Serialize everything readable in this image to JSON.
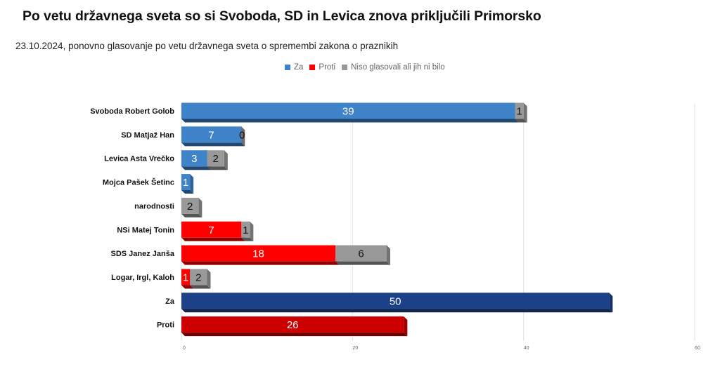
{
  "title": "Po vetu državnega sveta so si Svoboda, SD in Levica znova priključili Primorsko",
  "subtitle": "23.10.2024, ponovno glasovanje po vetu državnega sveta o spremembi zakona o praznikih",
  "chart_data": {
    "type": "bar",
    "orientation": "horizontal",
    "stacked": true,
    "three_d": true,
    "categories": [
      "Svoboda Robert Golob",
      "SD Matjaž Han",
      "Levica Asta Vrečko",
      "Mojca Pašek Šetinc",
      "narodnosti",
      "NSi Matej Tonin",
      "SDS Janez Janša",
      "Logar, Irgl, Kaloh",
      "Za",
      "Proti"
    ],
    "series": [
      {
        "name": "Za",
        "color": "#3f83c9",
        "values": [
          39,
          7,
          3,
          1,
          0,
          0,
          0,
          0,
          0,
          0
        ]
      },
      {
        "name": "Proti",
        "color": "#ff0000",
        "values": [
          0,
          0,
          0,
          0,
          0,
          7,
          18,
          1,
          0,
          0
        ]
      },
      {
        "name": "Niso glasovali ali jih ni bilo",
        "color": "#999999",
        "values": [
          1,
          0,
          2,
          0,
          2,
          1,
          6,
          2,
          0,
          0
        ]
      }
    ],
    "totals": [
      {
        "category": "Za",
        "value": 50,
        "color": "#1c4189"
      },
      {
        "category": "Proti",
        "value": 26,
        "color": "#cc0000"
      }
    ],
    "data_labels": [
      [
        {
          "series": "Za",
          "value": "39"
        },
        {
          "series": "Niso glasovali ali jih ni bilo",
          "value": "1"
        }
      ],
      [
        {
          "series": "Za",
          "value": "7"
        },
        {
          "series": "Niso glasovali ali jih ni bilo",
          "value": "0"
        }
      ],
      [
        {
          "series": "Za",
          "value": "3"
        },
        {
          "series": "Niso glasovali ali jih ni bilo",
          "value": "2"
        }
      ],
      [
        {
          "series": "Za",
          "value": "1"
        }
      ],
      [
        {
          "series": "Niso glasovali ali jih ni bilo",
          "value": "2"
        }
      ],
      [
        {
          "series": "Proti",
          "value": "7"
        },
        {
          "series": "Niso glasovali ali jih ni bilo",
          "value": "1"
        }
      ],
      [
        {
          "series": "Proti",
          "value": "18"
        },
        {
          "series": "Niso glasovali ali jih ni bilo",
          "value": "6"
        }
      ],
      [
        {
          "series": "Proti",
          "value": "1"
        },
        {
          "series": "Niso glasovali ali jih ni bilo",
          "value": "2"
        }
      ],
      [
        {
          "series": "Total",
          "value": "50"
        }
      ],
      [
        {
          "series": "Total",
          "value": "26"
        }
      ]
    ],
    "x_ticks": [
      "0",
      "20",
      "40",
      "60"
    ],
    "xlim": [
      0,
      60
    ],
    "grid": true,
    "legend_position": "top"
  }
}
